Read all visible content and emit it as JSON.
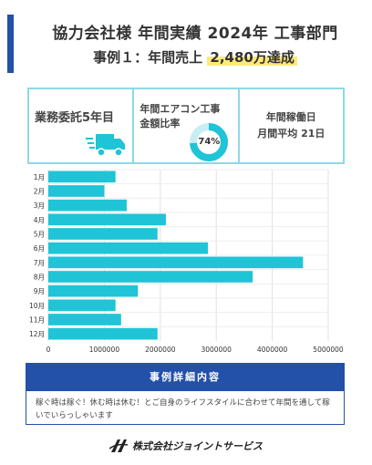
{
  "header": {
    "title": "協力会社様 年間実績 2024年 工事部門",
    "subtitle_prefix": "事例１：年間売上",
    "subtitle_highlight": "2,480万達成"
  },
  "stats": {
    "contract": "業務委託5年目",
    "ac_label_line1": "年間エアコン工事",
    "ac_label_line2": "金額比率",
    "ac_ratio_label": "74%",
    "ac_ratio": 74,
    "work_line1": "年間稼働日",
    "work_line2": "月間平均 21日"
  },
  "chart_data": {
    "type": "bar",
    "orientation": "horizontal",
    "categories": [
      "1月",
      "2月",
      "3月",
      "4月",
      "5月",
      "6月",
      "7月",
      "8月",
      "9月",
      "10月",
      "11月",
      "12月"
    ],
    "values": [
      1200000,
      1000000,
      1400000,
      2100000,
      1950000,
      2850000,
      4550000,
      3650000,
      1600000,
      1200000,
      1300000,
      1950000
    ],
    "xlim": [
      0,
      5000000
    ],
    "xticks": [
      "0",
      "1000000",
      "2000000",
      "3000000",
      "4000000",
      "5000000"
    ],
    "bar_color": "#1fc4d6",
    "grid": true
  },
  "detail": {
    "heading": "事例詳細内容",
    "body": "稼ぐ時は稼ぐ！休む時は休む！とご自身のライフスタイルに合わせて年間を通して稼いでいらっしゃいます"
  },
  "footer": {
    "company": "株式会社ジョイントサービス"
  },
  "colors": {
    "navy": "#2350a8",
    "cyan": "#1fc4d6",
    "highlight": "#ffe97a"
  }
}
